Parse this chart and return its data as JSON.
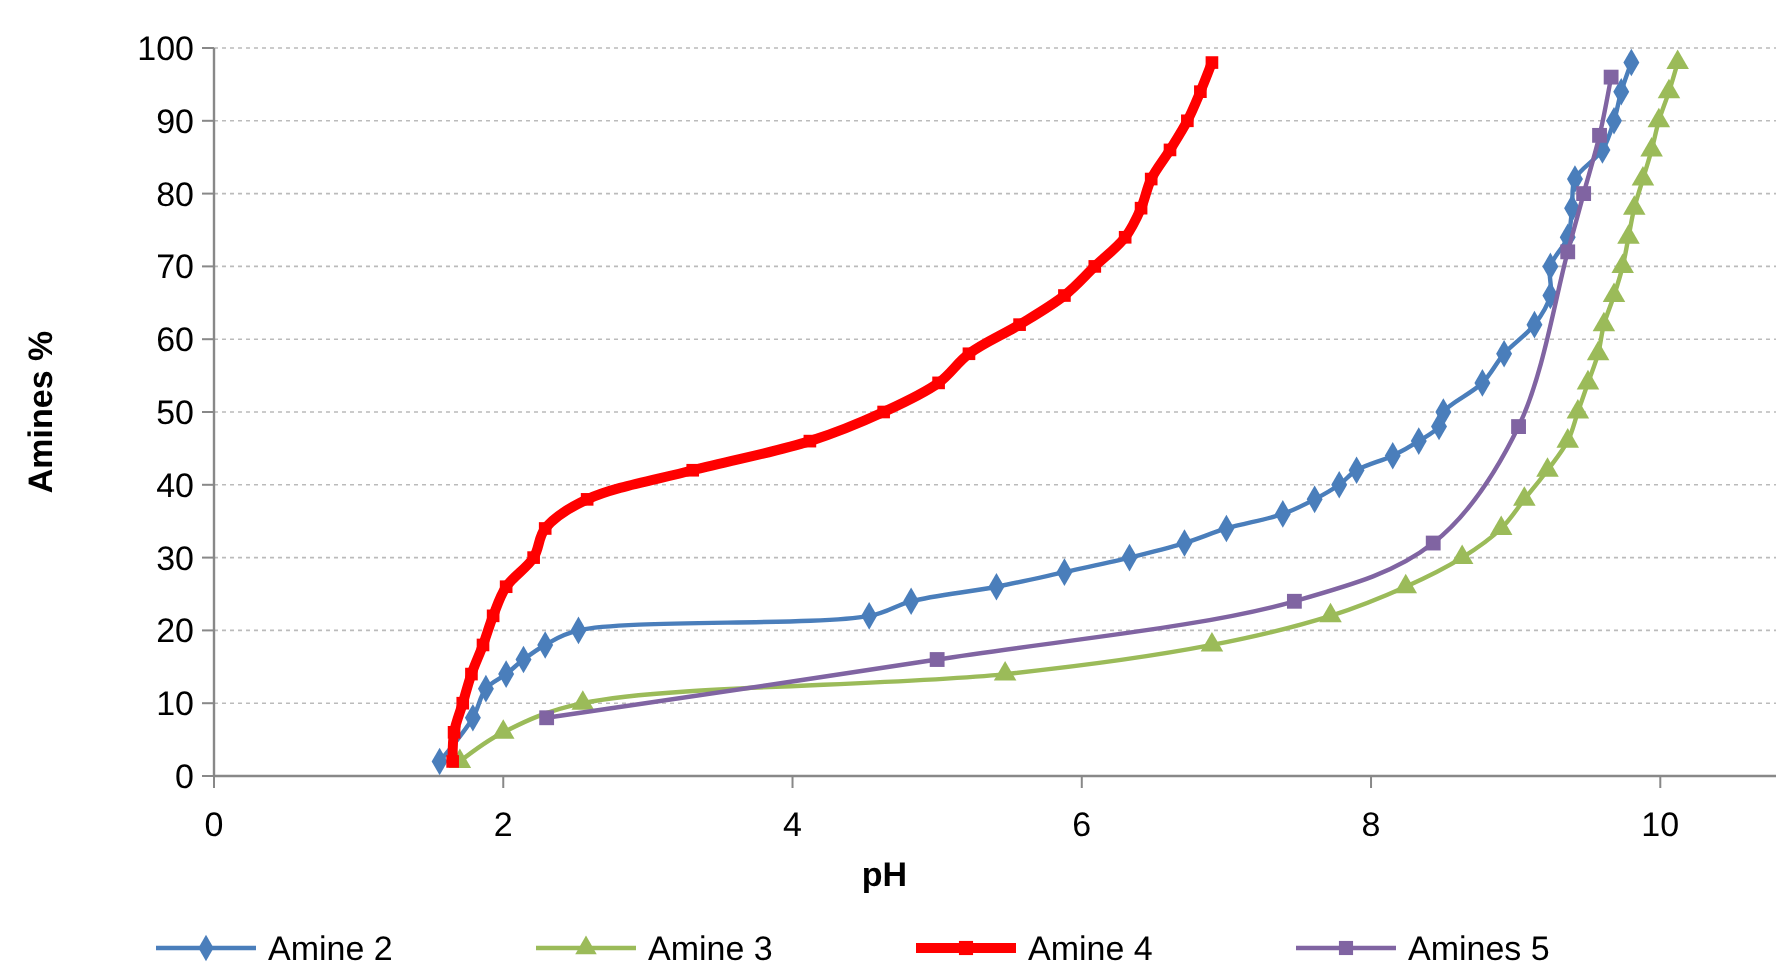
{
  "chart_data": {
    "type": "line",
    "xlabel": "pH",
    "ylabel": "Amines %",
    "xlim": [
      0,
      10.8
    ],
    "ylim": [
      0,
      100
    ],
    "xticks": [
      0,
      2,
      4,
      6,
      8,
      10
    ],
    "yticks": [
      0,
      10,
      20,
      30,
      40,
      50,
      60,
      70,
      80,
      90,
      100
    ],
    "grid": "y",
    "legend": "bottom",
    "series": [
      {
        "name": "Amine 2",
        "color": "#4a7ebb",
        "marker": "diamond",
        "x": [
          1.56,
          1.79,
          1.88,
          2.02,
          2.14,
          2.29,
          2.52,
          4.53,
          4.82,
          5.41,
          5.88,
          6.33,
          6.71,
          7.0,
          7.39,
          7.61,
          7.78,
          7.9,
          8.15,
          8.33,
          8.47,
          8.5,
          8.77,
          8.92,
          9.13,
          9.24,
          9.24,
          9.36,
          9.39,
          9.41,
          9.6,
          9.68,
          9.73,
          9.8
        ],
        "values": [
          2,
          8,
          12,
          14,
          16,
          18,
          20,
          22,
          24,
          26,
          28,
          30,
          32,
          34,
          36,
          38,
          40,
          42,
          44,
          46,
          48,
          50,
          54,
          58,
          62,
          66,
          70,
          74,
          78,
          82,
          86,
          90,
          94,
          98
        ]
      },
      {
        "name": "Amine 3",
        "color": "#9bbb59",
        "marker": "triangle",
        "x": [
          1.7,
          2.0,
          2.55,
          5.47,
          6.9,
          7.72,
          8.24,
          8.63,
          8.9,
          9.06,
          9.22,
          9.36,
          9.43,
          9.5,
          9.57,
          9.61,
          9.68,
          9.74,
          9.78,
          9.82,
          9.88,
          9.94,
          9.99,
          10.06,
          10.12
        ],
        "values": [
          2,
          6,
          10,
          14,
          18,
          22,
          26,
          30,
          34,
          38,
          42,
          46,
          50,
          54,
          58,
          62,
          66,
          70,
          74,
          78,
          82,
          86,
          90,
          94,
          98
        ]
      },
      {
        "name": "Amine 4",
        "color": "#ff0000",
        "marker": "square",
        "x": [
          1.65,
          1.66,
          1.72,
          1.78,
          1.86,
          1.93,
          2.02,
          2.21,
          2.29,
          2.58,
          3.31,
          4.12,
          4.63,
          5.01,
          5.22,
          5.57,
          5.88,
          6.09,
          6.3,
          6.41,
          6.48,
          6.61,
          6.73,
          6.82,
          6.9
        ],
        "values": [
          2,
          6,
          10,
          14,
          18,
          22,
          26,
          30,
          34,
          38,
          42,
          46,
          50,
          54,
          58,
          62,
          66,
          70,
          74,
          78,
          82,
          86,
          90,
          94,
          98
        ]
      },
      {
        "name": "Amines 5",
        "color": "#8064a2",
        "marker": "square",
        "x": [
          2.3,
          5.0,
          7.47,
          8.43,
          9.02,
          9.36,
          9.47,
          9.58,
          9.66
        ],
        "values": [
          8,
          16,
          24,
          32,
          48,
          72,
          80,
          88,
          96
        ]
      }
    ]
  }
}
